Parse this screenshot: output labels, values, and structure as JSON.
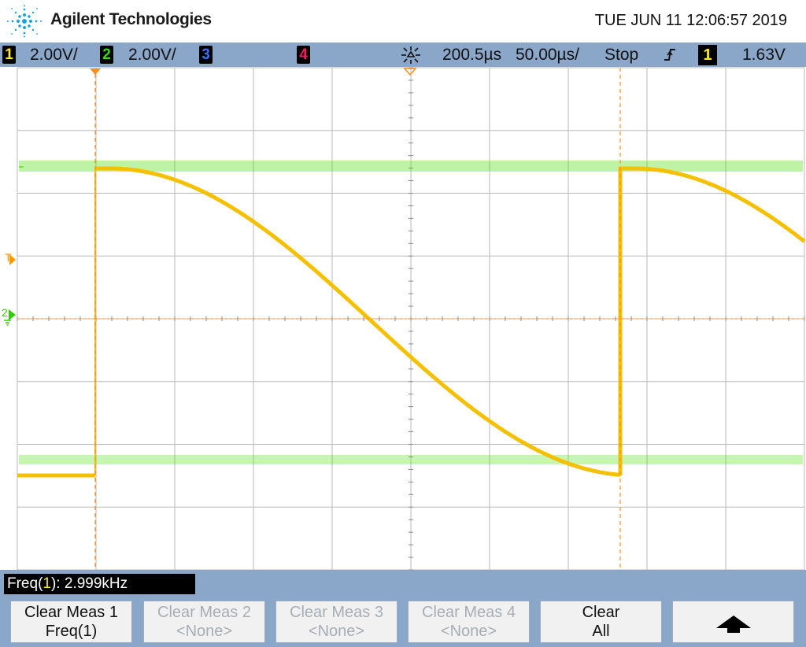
{
  "header": {
    "brand": "Agilent Technologies",
    "datetime": "TUE JUN 11 12:06:57 2019"
  },
  "status_bar": {
    "ch1": {
      "num": "1",
      "scale": "2.00V/",
      "color": "#ffee00"
    },
    "ch2": {
      "num": "2",
      "scale": "2.00V/",
      "color": "#33dd00"
    },
    "ch3": {
      "num": "3",
      "color": "#3a6fff"
    },
    "ch4": {
      "num": "4",
      "color": "#ff1a66"
    },
    "time_delay": "200.5µs",
    "time_scale": "50.00µs/",
    "run_state": "Stop",
    "trigger_slope_icon": "rising-edge-icon",
    "trigger_source": "1",
    "trigger_level": "1.63V"
  },
  "markers": {
    "trigger_marker": "T",
    "ch2_ground": "2"
  },
  "measurement": {
    "label": "Freq(",
    "channel": "1",
    "label_end": "): ",
    "value": "2.999kHz"
  },
  "softkeys": [
    {
      "line1": "Clear Meas 1",
      "line2": "Freq(1)",
      "enabled": true
    },
    {
      "line1": "Clear Meas 2",
      "line2": "<None>",
      "enabled": false
    },
    {
      "line1": "Clear Meas 3",
      "line2": "<None>",
      "enabled": false
    },
    {
      "line1": "Clear Meas 4",
      "line2": "<None>",
      "enabled": false
    },
    {
      "line1": "Clear",
      "line2": "All",
      "enabled": true
    },
    {
      "icon": "up-arrow-icon",
      "enabled": true
    }
  ],
  "colors": {
    "ch1_trace": "#f5c000",
    "ch2_trace": "#44dd00",
    "cursor": "#ff8c1a",
    "grid": "#b8b8b8",
    "panel": "#8aa6c8"
  }
}
